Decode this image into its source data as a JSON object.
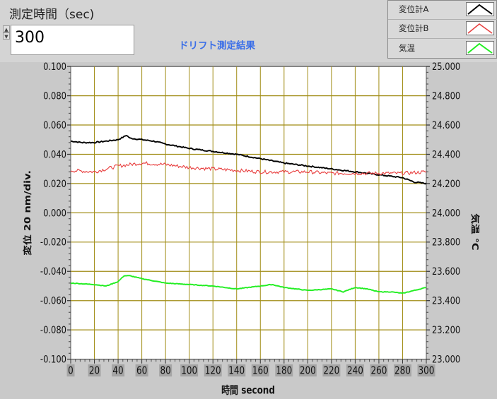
{
  "measure_time": {
    "label": "測定時間（sec)",
    "value": "300"
  },
  "graph_title": "ドリフト測定結果",
  "legend": [
    {
      "label": "変位計A",
      "color": "#000000"
    },
    {
      "label": "変位計B",
      "color": "#e84040"
    },
    {
      "label": "気温",
      "color": "#22ee22"
    }
  ],
  "chart_data": {
    "type": "line",
    "xlabel": "時間 second",
    "ylabel": "変位 20 nm/div.",
    "y2label": "気温 ℃",
    "xlim": [
      0,
      300
    ],
    "ylim": [
      -0.1,
      0.1
    ],
    "y2lim": [
      23.0,
      25.0
    ],
    "x_ticks": [
      "0",
      "20",
      "40",
      "60",
      "80",
      "100",
      "120",
      "140",
      "160",
      "180",
      "200",
      "220",
      "240",
      "260",
      "280",
      "300"
    ],
    "y_ticks": [
      "0.100",
      "0.080",
      "0.060",
      "0.040",
      "0.020",
      "0.000",
      "-0.020",
      "-0.040",
      "-0.060",
      "-0.080",
      "-0.100"
    ],
    "y2_ticks": [
      "25.000",
      "24.800",
      "24.600",
      "24.400",
      "24.200",
      "24.000",
      "23.800",
      "23.600",
      "23.400",
      "23.200",
      "23.000"
    ],
    "grid": true,
    "series": [
      {
        "name": "変位計A",
        "axis": "left",
        "color": "#000000",
        "x": [
          0,
          10,
          20,
          30,
          40,
          45,
          47,
          50,
          60,
          70,
          80,
          100,
          120,
          140,
          160,
          180,
          200,
          220,
          240,
          260,
          280,
          290,
          300
        ],
        "y": [
          0.049,
          0.048,
          0.048,
          0.049,
          0.05,
          0.052,
          0.053,
          0.051,
          0.05,
          0.049,
          0.047,
          0.044,
          0.042,
          0.04,
          0.037,
          0.034,
          0.032,
          0.03,
          0.028,
          0.026,
          0.024,
          0.021,
          0.02
        ]
      },
      {
        "name": "変位計B",
        "axis": "left",
        "color": "#e84040",
        "x": [
          0,
          20,
          40,
          60,
          80,
          100,
          120,
          140,
          160,
          180,
          200,
          220,
          240,
          260,
          280,
          300
        ],
        "y": [
          0.029,
          0.028,
          0.032,
          0.034,
          0.033,
          0.031,
          0.03,
          0.029,
          0.028,
          0.028,
          0.028,
          0.027,
          0.027,
          0.027,
          0.027,
          0.028
        ]
      },
      {
        "name": "気温",
        "axis": "right",
        "color": "#22ee22",
        "x": [
          0,
          20,
          30,
          40,
          45,
          50,
          60,
          80,
          100,
          120,
          140,
          150,
          160,
          170,
          180,
          200,
          220,
          230,
          240,
          250,
          260,
          270,
          280,
          300
        ],
        "y": [
          23.52,
          23.51,
          23.5,
          23.53,
          23.57,
          23.57,
          23.55,
          23.52,
          23.51,
          23.5,
          23.48,
          23.49,
          23.5,
          23.51,
          23.49,
          23.47,
          23.48,
          23.46,
          23.49,
          23.48,
          23.46,
          23.46,
          23.45,
          23.49
        ]
      }
    ]
  }
}
